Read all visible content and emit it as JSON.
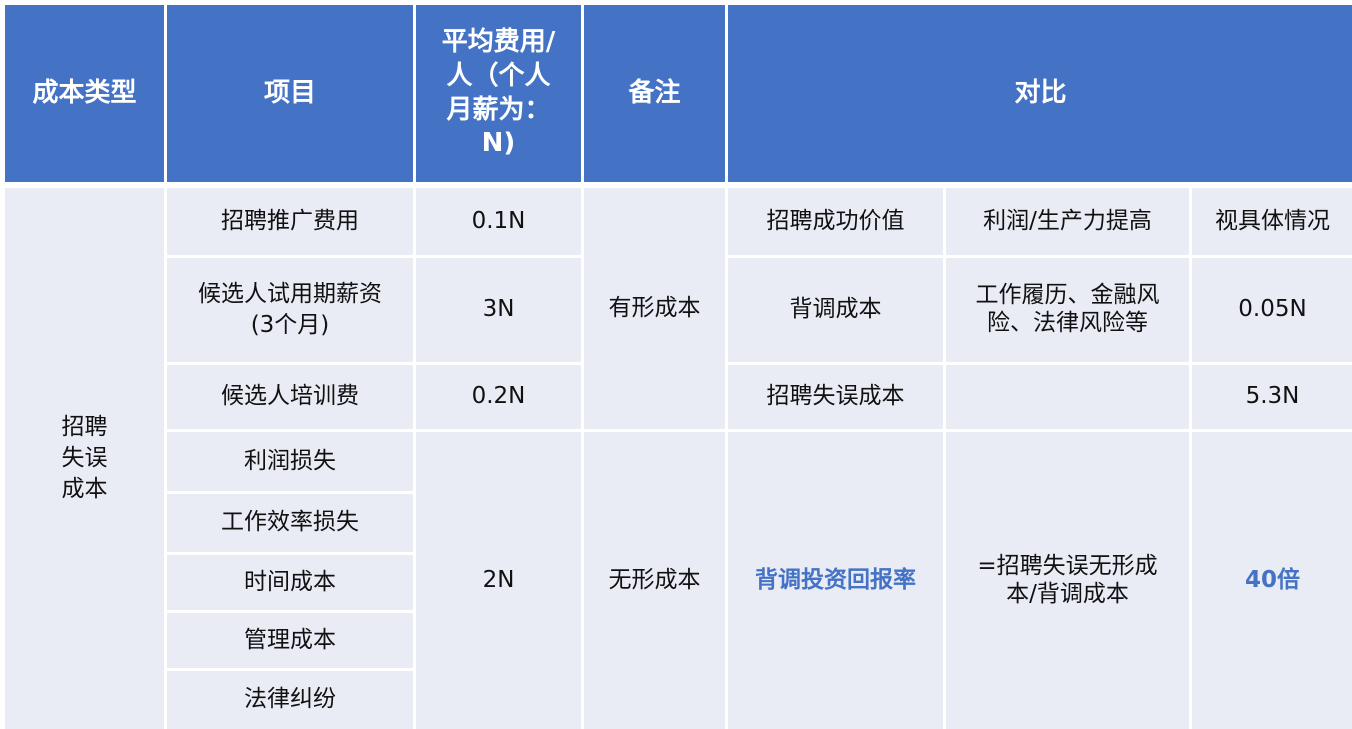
{
  "header": [
    "成本类型",
    "项目",
    "平均费用/\n人（个人\n月薪为：\nN)",
    "备注",
    "对比"
  ],
  "category": "招聘\n失误\n成本",
  "items": [
    "招聘推广费用",
    "候选人试用期薪资\n(3个月)",
    "候选人培训费",
    "利润损失",
    "工作效率损失",
    "时间成本",
    "管理成本",
    "法律纠纷"
  ],
  "costs": [
    "0.1N",
    "3N",
    "0.2N",
    "2N"
  ],
  "notes": [
    "有形成本",
    "无形成本"
  ],
  "compare": [
    [
      "招聘成功价值",
      "利润/生产力提高",
      "视具体情况"
    ],
    [
      "背调成本",
      "工作履历、金融风\n险、法律风险等",
      "0.05N"
    ],
    [
      "招聘失误成本",
      "",
      "5.3N"
    ],
    [
      "背调投资回报率",
      "=招聘失误无形成\n本/背调成本",
      "40倍"
    ]
  ],
  "colors": {
    "header": "#4472C4",
    "cell": "#E9EBF5",
    "highlight": "#4472C4"
  }
}
